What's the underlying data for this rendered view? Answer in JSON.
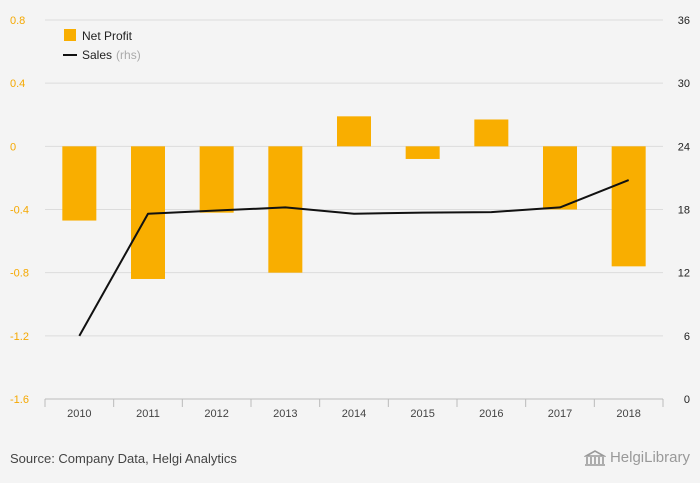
{
  "chart_data": {
    "type": "bar+line",
    "categories": [
      "2010",
      "2011",
      "2012",
      "2013",
      "2014",
      "2015",
      "2016",
      "2017",
      "2018"
    ],
    "series": [
      {
        "name": "Net Profit",
        "type": "bar",
        "axis": "left",
        "values": [
          -0.47,
          -0.84,
          -0.42,
          -0.8,
          0.19,
          -0.08,
          0.17,
          -0.4,
          -0.76
        ]
      },
      {
        "name": "Sales",
        "type": "line",
        "axis": "right",
        "values": [
          6.0,
          17.6,
          17.9,
          18.2,
          17.6,
          17.7,
          17.75,
          18.2,
          20.8
        ]
      }
    ],
    "left_axis": {
      "min": -1.6,
      "max": 0.8,
      "ticks": [
        "0.8",
        "0.4",
        "0",
        "-0.4",
        "-0.8",
        "-1.2",
        "-1.6"
      ],
      "tick_values": [
        0.8,
        0.4,
        0,
        -0.4,
        -0.8,
        -1.2,
        -1.6
      ]
    },
    "right_axis": {
      "min": 0,
      "max": 36,
      "ticks": [
        "36",
        "30",
        "24",
        "18",
        "12",
        "6",
        "0"
      ],
      "tick_values": [
        36,
        30,
        24,
        18,
        12,
        6,
        0
      ]
    },
    "legend": [
      {
        "label": "Net Profit",
        "suffix": "",
        "color": "#f9ae00"
      },
      {
        "label": "Sales",
        "suffix": "(rhs)",
        "color": "#111111"
      }
    ],
    "grid": true,
    "legend_position": "top-left"
  },
  "colors": {
    "bar": "#f9ae00",
    "line": "#111111",
    "left_ticks": "#f5a800",
    "grid": "#dcdcdc"
  },
  "footer": {
    "source": "Source: Company Data, Helgi Analytics",
    "brand_name": "HelgiLibrary",
    "brand_icon": "library-building-icon"
  }
}
